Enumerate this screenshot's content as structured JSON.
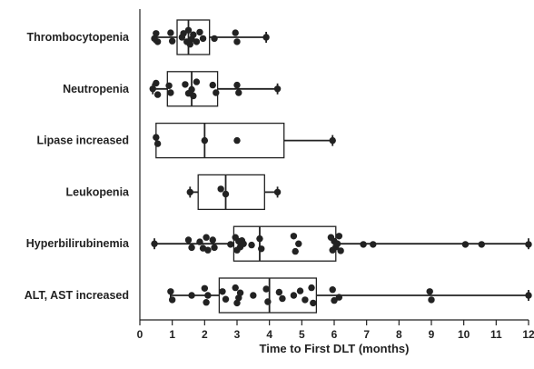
{
  "chart_data": {
    "type": "boxplot",
    "orientation": "horizontal",
    "xlabel": "Time to First DLT (months)",
    "ylabel": "",
    "xlim": [
      0,
      12
    ],
    "xticks": [
      "0",
      "1",
      "2",
      "3",
      "4",
      "5",
      "6",
      "7",
      "8",
      "9",
      "10",
      "11",
      "12"
    ],
    "grid": false,
    "legend": "none",
    "colors": {
      "ink": "#222222",
      "box_fill": "#ffffff",
      "background": "#ffffff"
    },
    "categories": [
      "Thrombocytopenia",
      "Neutropenia",
      "Lipase increased",
      "Leukopenia",
      "Hyperbilirubinemia",
      "ALT, AST increased"
    ],
    "boxes": [
      {
        "category": "Thrombocytopenia",
        "whisker_low": 0.45,
        "q1": 1.15,
        "median": 1.5,
        "q3": 2.15,
        "whisker_high": 3.9
      },
      {
        "category": "Neutropenia",
        "whisker_low": 0.4,
        "q1": 0.85,
        "median": 1.6,
        "q3": 2.4,
        "whisker_high": 4.25
      },
      {
        "category": "Lipase increased",
        "whisker_low": 0.5,
        "q1": 0.5,
        "median": 2.0,
        "q3": 4.45,
        "whisker_high": 5.95
      },
      {
        "category": "Leukopenia",
        "whisker_low": 1.55,
        "q1": 1.8,
        "median": 2.65,
        "q3": 3.85,
        "whisker_high": 4.25
      },
      {
        "category": "Hyperbilirubinemia",
        "whisker_low": 0.45,
        "q1": 2.9,
        "median": 3.7,
        "q3": 6.05,
        "whisker_high": 12.0
      },
      {
        "category": "ALT, AST increased",
        "whisker_low": 0.95,
        "q1": 2.45,
        "median": 4.0,
        "q3": 5.45,
        "whisker_high": 12.0
      }
    ],
    "points": [
      {
        "category": "Thrombocytopenia",
        "x": [
          0.45,
          0.5,
          0.55,
          0.95,
          1.0,
          1.3,
          1.35,
          1.45,
          1.5,
          1.55,
          1.6,
          1.65,
          1.75,
          1.85,
          1.95,
          2.3,
          2.95,
          3.0,
          3.9
        ],
        "jitter": [
          0.1,
          -0.3,
          0.35,
          -0.35,
          0.3,
          0.0,
          -0.3,
          0.35,
          -0.55,
          0.55,
          0.15,
          -0.2,
          0.35,
          -0.4,
          0.1,
          0.1,
          -0.35,
          0.35,
          0.0
        ]
      },
      {
        "category": "Neutropenia",
        "x": [
          0.4,
          0.5,
          0.55,
          0.9,
          0.95,
          1.4,
          1.5,
          1.6,
          1.65,
          1.75,
          2.25,
          2.35,
          3.0,
          3.05,
          4.25
        ],
        "jitter": [
          0.0,
          -0.45,
          0.45,
          -0.25,
          0.3,
          -0.35,
          0.35,
          0.05,
          0.55,
          -0.55,
          -0.3,
          0.3,
          -0.3,
          0.3,
          0.0
        ]
      },
      {
        "category": "Lipase increased",
        "x": [
          0.5,
          0.55,
          2.0,
          3.0,
          5.95
        ],
        "jitter": [
          -0.25,
          0.25,
          0.0,
          0.0,
          0.0
        ]
      },
      {
        "category": "Leukopenia",
        "x": [
          1.55,
          2.5,
          2.65,
          4.25
        ],
        "jitter": [
          0.0,
          -0.25,
          0.15,
          0.0
        ]
      },
      {
        "category": "Hyperbilirubinemia",
        "x": [
          0.45,
          1.5,
          1.6,
          1.85,
          1.95,
          2.05,
          2.1,
          2.25,
          2.3,
          2.8,
          2.95,
          3.0,
          3.05,
          3.1,
          3.15,
          3.2,
          3.45,
          3.7,
          3.75,
          4.75,
          4.8,
          4.9,
          5.9,
          5.95,
          6.0,
          6.05,
          6.1,
          6.15,
          6.2,
          6.9,
          7.2,
          10.05,
          10.55,
          12.0
        ],
        "jitter": [
          0.0,
          -0.3,
          0.3,
          -0.15,
          0.35,
          -0.5,
          0.5,
          -0.3,
          0.3,
          0.05,
          -0.5,
          0.5,
          -0.2,
          0.25,
          -0.25,
          0.0,
          0.1,
          -0.4,
          0.4,
          -0.6,
          0.6,
          0.0,
          -0.5,
          0.5,
          -0.2,
          0.25,
          0.0,
          -0.6,
          0.55,
          0.05,
          0.05,
          0.05,
          0.05,
          0.05
        ]
      },
      {
        "category": "ALT, AST increased",
        "x": [
          0.95,
          1.0,
          1.6,
          2.0,
          2.05,
          2.1,
          2.55,
          2.65,
          2.95,
          3.0,
          3.05,
          3.1,
          3.5,
          3.9,
          3.95,
          4.3,
          4.4,
          4.75,
          4.95,
          5.1,
          5.3,
          5.35,
          5.95,
          6.0,
          6.15,
          8.95,
          9.0,
          12.0
        ],
        "jitter": [
          -0.3,
          0.35,
          0.0,
          -0.55,
          0.55,
          0.0,
          -0.3,
          0.3,
          -0.6,
          0.6,
          0.2,
          -0.2,
          0.0,
          -0.5,
          0.5,
          -0.25,
          0.25,
          0.0,
          -0.35,
          0.35,
          -0.6,
          0.6,
          -0.45,
          0.4,
          0.15,
          -0.3,
          0.35,
          0.0
        ]
      }
    ]
  }
}
